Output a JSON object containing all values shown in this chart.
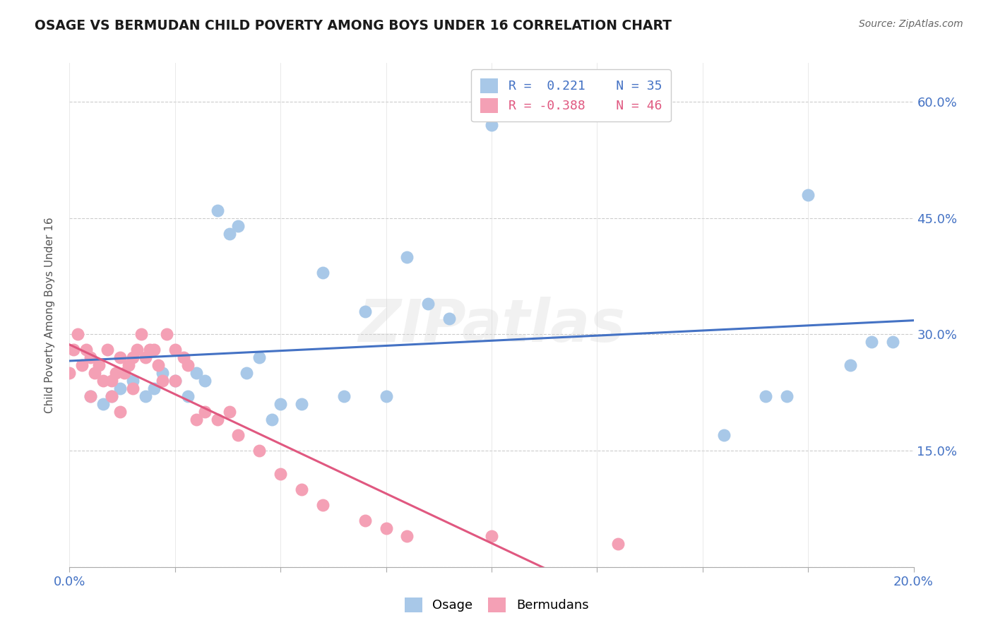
{
  "title": "OSAGE VS BERMUDAN CHILD POVERTY AMONG BOYS UNDER 16 CORRELATION CHART",
  "source": "Source: ZipAtlas.com",
  "ylabel": "Child Poverty Among Boys Under 16",
  "xlim": [
    0.0,
    0.2
  ],
  "ylim": [
    0.0,
    0.65
  ],
  "xticks": [
    0.0,
    0.025,
    0.05,
    0.075,
    0.1,
    0.125,
    0.15,
    0.175,
    0.2
  ],
  "xtick_labels_show": [
    "0.0%",
    "",
    "",
    "",
    "",
    "",
    "",
    "",
    "20.0%"
  ],
  "yticks": [
    0.0,
    0.15,
    0.3,
    0.45,
    0.6
  ],
  "ytick_labels_right": [
    "",
    "15.0%",
    "30.0%",
    "45.0%",
    "60.0%"
  ],
  "legend_R_osage": "0.221",
  "legend_N_osage": "35",
  "legend_R_bermudan": "-0.388",
  "legend_N_bermudan": "46",
  "osage_color": "#a8c8e8",
  "bermudan_color": "#f4a0b5",
  "osage_line_color": "#4472c4",
  "bermudan_line_color": "#e05880",
  "watermark": "ZIPatlas",
  "osage_x": [
    0.005,
    0.008,
    0.01,
    0.012,
    0.015,
    0.018,
    0.02,
    0.022,
    0.025,
    0.028,
    0.03,
    0.032,
    0.035,
    0.038,
    0.04,
    0.042,
    0.045,
    0.048,
    0.05,
    0.055,
    0.06,
    0.065,
    0.07,
    0.075,
    0.08,
    0.085,
    0.09,
    0.1,
    0.155,
    0.165,
    0.17,
    0.175,
    0.185,
    0.19,
    0.195
  ],
  "osage_y": [
    0.22,
    0.21,
    0.22,
    0.23,
    0.24,
    0.22,
    0.23,
    0.25,
    0.24,
    0.22,
    0.25,
    0.24,
    0.46,
    0.43,
    0.44,
    0.25,
    0.27,
    0.19,
    0.21,
    0.21,
    0.38,
    0.22,
    0.33,
    0.22,
    0.4,
    0.34,
    0.32,
    0.57,
    0.17,
    0.22,
    0.22,
    0.48,
    0.26,
    0.29,
    0.29
  ],
  "bermudan_x": [
    0.0,
    0.001,
    0.002,
    0.003,
    0.004,
    0.005,
    0.005,
    0.006,
    0.007,
    0.008,
    0.009,
    0.01,
    0.01,
    0.011,
    0.012,
    0.012,
    0.013,
    0.014,
    0.015,
    0.015,
    0.016,
    0.017,
    0.018,
    0.019,
    0.02,
    0.021,
    0.022,
    0.023,
    0.025,
    0.025,
    0.027,
    0.028,
    0.03,
    0.032,
    0.035,
    0.038,
    0.04,
    0.045,
    0.05,
    0.055,
    0.06,
    0.07,
    0.075,
    0.08,
    0.1,
    0.13
  ],
  "bermudan_y": [
    0.25,
    0.28,
    0.3,
    0.26,
    0.28,
    0.22,
    0.27,
    0.25,
    0.26,
    0.24,
    0.28,
    0.22,
    0.24,
    0.25,
    0.2,
    0.27,
    0.25,
    0.26,
    0.27,
    0.23,
    0.28,
    0.3,
    0.27,
    0.28,
    0.28,
    0.26,
    0.24,
    0.3,
    0.28,
    0.24,
    0.27,
    0.26,
    0.19,
    0.2,
    0.19,
    0.2,
    0.17,
    0.15,
    0.12,
    0.1,
    0.08,
    0.06,
    0.05,
    0.04,
    0.04,
    0.03
  ]
}
